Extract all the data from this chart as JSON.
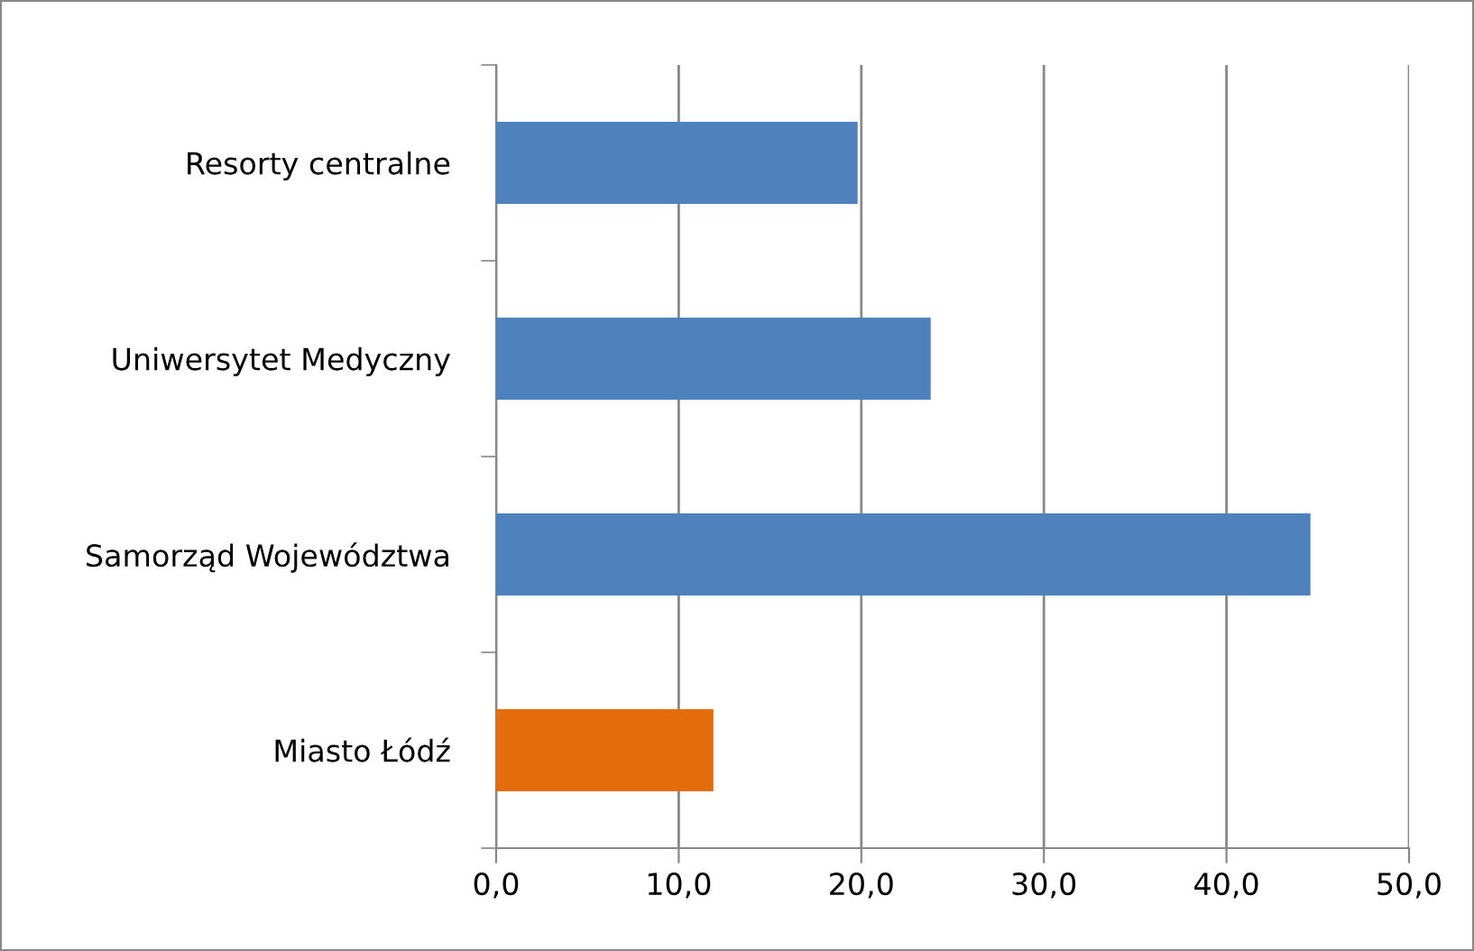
{
  "chart_data": {
    "type": "bar",
    "orientation": "horizontal",
    "categories": [
      "Resorty centralne",
      "Uniwersytet Medyczny",
      "Samorząd Województwa",
      "Miasto Łódź"
    ],
    "values": [
      19.8,
      23.8,
      44.6,
      11.9
    ],
    "colors": [
      "#4f81bd",
      "#4f81bd",
      "#4f81bd",
      "#e46c0a"
    ],
    "xlim": [
      0,
      50
    ],
    "xticks": [
      {
        "value": 0,
        "label": "0,0"
      },
      {
        "value": 10,
        "label": "10,0"
      },
      {
        "value": 20,
        "label": "20,0"
      },
      {
        "value": 30,
        "label": "30,0"
      },
      {
        "value": 40,
        "label": "40,0"
      },
      {
        "value": 50,
        "label": "50,0"
      }
    ],
    "grid": "x",
    "legend": false
  }
}
